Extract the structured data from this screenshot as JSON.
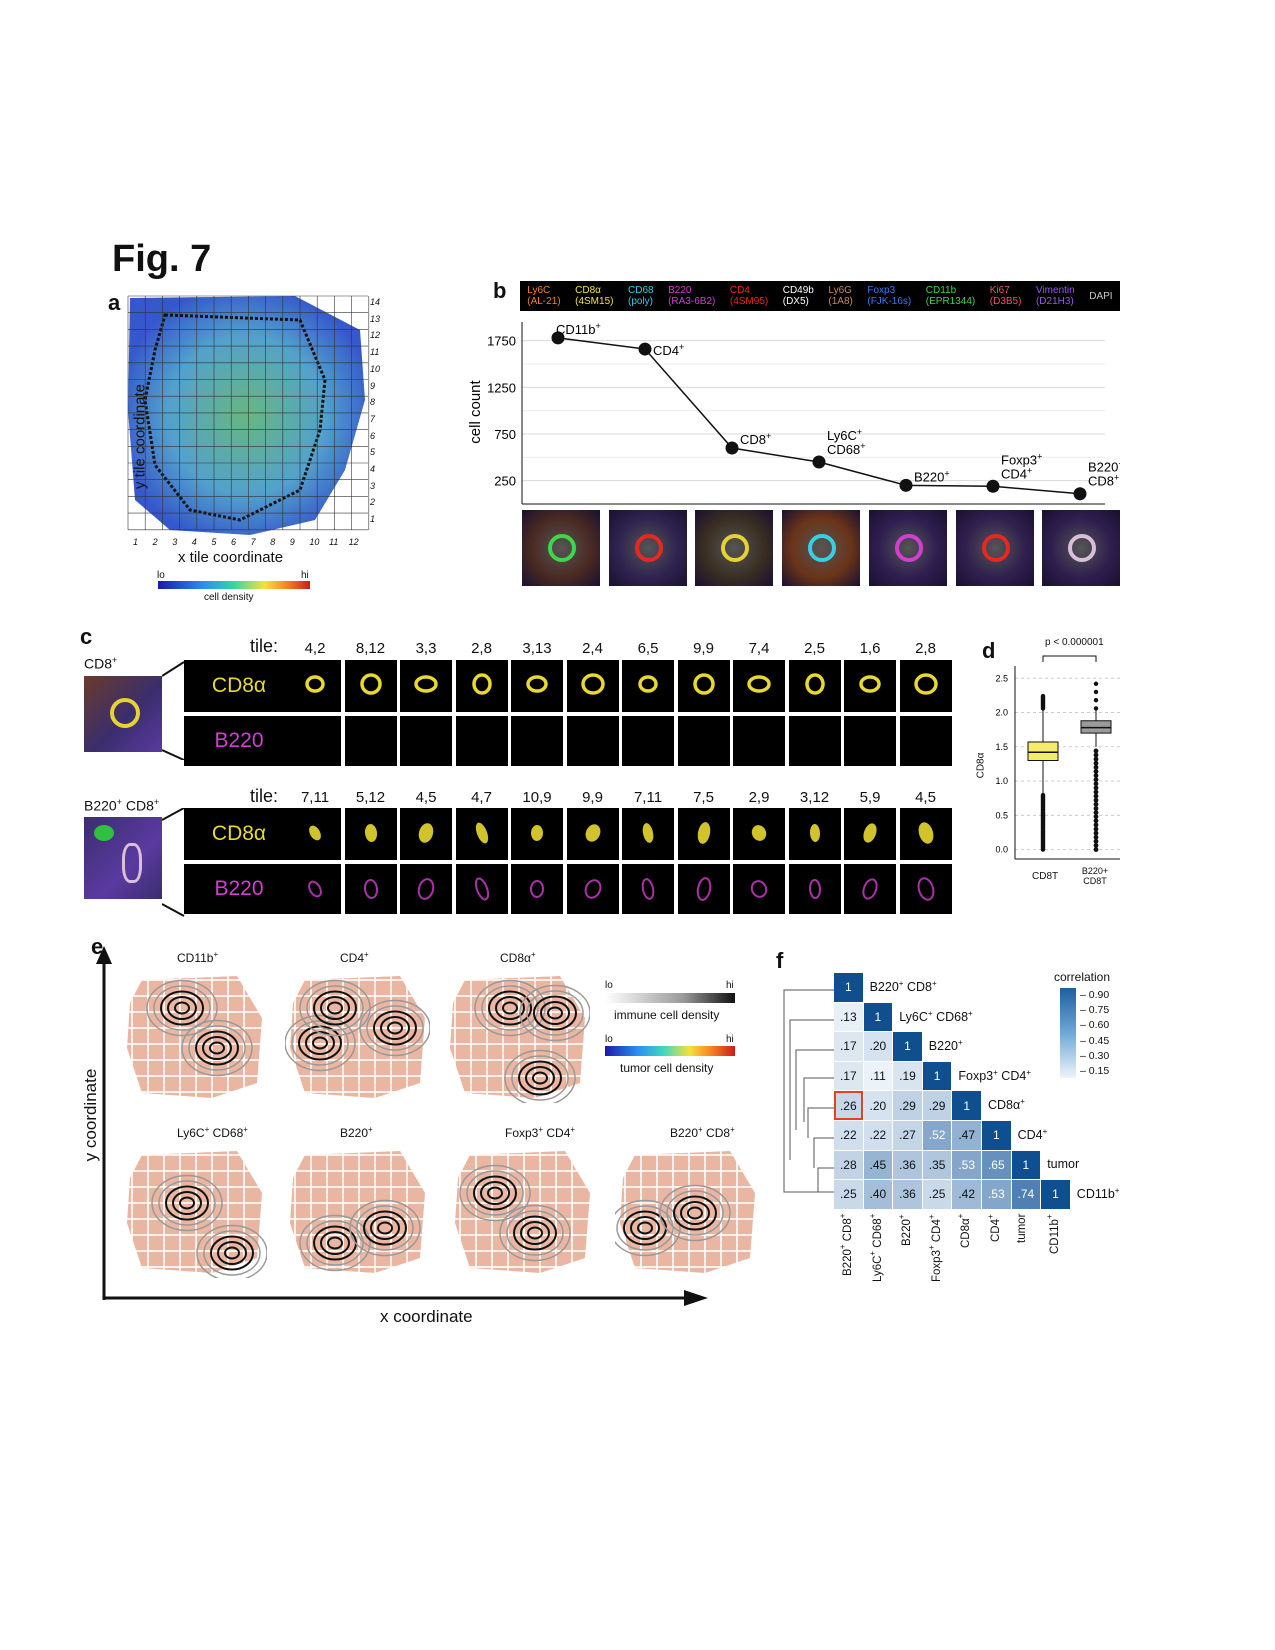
{
  "figure_title": "Fig. 7",
  "panels": {
    "a": {
      "letter": "a",
      "x_ticks": [
        "1",
        "2",
        "3",
        "4",
        "5",
        "6",
        "7",
        "8",
        "9",
        "10",
        "11",
        "12"
      ],
      "y_ticks": [
        "14",
        "13",
        "12",
        "11",
        "10",
        "9",
        "8",
        "7",
        "6",
        "5",
        "4",
        "3",
        "2",
        "1"
      ],
      "xlabel": "x tile coordinate",
      "ylabel": "y tile coordinate",
      "colorbar": {
        "lo": "lo",
        "hi": "hi",
        "label": "cell density"
      }
    },
    "b": {
      "letter": "b",
      "markers": [
        {
          "name": "Ly6C",
          "clone": "(AL-21)",
          "color": "#f58220"
        },
        {
          "name": "CD8α",
          "clone": "(4SM15)",
          "color": "#f5e13c"
        },
        {
          "name": "CD68",
          "clone": "(poly)",
          "color": "#35d0e6"
        },
        {
          "name": "B220",
          "clone": "(RA3-6B2)",
          "color": "#d23fd0"
        },
        {
          "name": "CD4",
          "clone": "(4SM95)",
          "color": "#e8281e"
        },
        {
          "name": "CD49b",
          "clone": "(DX5)",
          "color": "#ffffff"
        },
        {
          "name": "Ly6G",
          "clone": "(1A8)",
          "color": "#c98a5a"
        },
        {
          "name": "Foxp3",
          "clone": "(FJK-16s)",
          "color": "#3a7bf0"
        },
        {
          "name": "CD11b",
          "clone": "(EPR1344)",
          "color": "#3fd64a"
        },
        {
          "name": "Ki67",
          "clone": "(D3B5)",
          "color": "#f0506e"
        },
        {
          "name": "Vimentin",
          "clone": "(D21H3)",
          "color": "#9b59f0"
        },
        {
          "name": "DAPI",
          "clone": "",
          "color": "#cccccc"
        }
      ],
      "labels_line1": [
        "CD11b",
        "CD4",
        "CD8",
        "Ly6C",
        "B220",
        "Foxp3",
        "B220"
      ],
      "labels_line2": [
        "",
        "",
        "",
        "CD68",
        "",
        "CD4",
        "CD8"
      ],
      "sup": "+"
    },
    "c": {
      "letter": "c",
      "row1_label": "CD8",
      "row2_label_a": "B220",
      "row2_label_b": "CD8",
      "sup": "+",
      "tile_word": "tile:",
      "chan1": "CD8α",
      "chan2": "B220",
      "row1_tiles": [
        "4,2",
        "8,12",
        "3,3",
        "2,8",
        "3,13",
        "2,4",
        "6,5",
        "9,9",
        "7,4",
        "2,5",
        "1,6",
        "2,8"
      ],
      "row2_tiles": [
        "7,11",
        "5,12",
        "4,5",
        "4,7",
        "10,9",
        "9,9",
        "7,11",
        "7,5",
        "2,9",
        "3,12",
        "5,9",
        "4,5"
      ]
    },
    "d": {
      "letter": "d",
      "pvalue": "p < 0.000001",
      "ylabel": "CD8α",
      "cat1": "CD8T",
      "cat2a": "B220+",
      "cat2b": "CD8T"
    },
    "e": {
      "letter": "e",
      "xlabel": "x coordinate",
      "ylabel": "y coordinate",
      "maps": [
        {
          "a": "CD11b",
          "b": ""
        },
        {
          "a": "CD4",
          "b": ""
        },
        {
          "a": "CD8α",
          "b": ""
        },
        {
          "a": "Ly6C",
          "b": "CD68"
        },
        {
          "a": "B220",
          "b": ""
        },
        {
          "a": "Foxp3",
          "b": "CD4"
        },
        {
          "a": "B220",
          "b": "CD8"
        }
      ],
      "sup": "+",
      "immune_legend": {
        "lo": "lo",
        "hi": "hi",
        "label": "immune cell density"
      },
      "tumor_legend": {
        "lo": "lo",
        "hi": "hi",
        "label": "tumor cell density"
      }
    },
    "f": {
      "letter": "f",
      "legend_title": "correlation",
      "legend_ticks": [
        "0.90",
        "0.75",
        "0.60",
        "0.45",
        "0.30",
        "0.15"
      ],
      "row_labels": [
        "B220",
        "Ly6C",
        "B220",
        "Foxp3",
        "CD8α",
        "CD4",
        "tumor",
        "CD11b"
      ],
      "row_labels_b": [
        "CD8",
        "CD68",
        "",
        "CD4",
        "",
        "",
        "",
        ""
      ],
      "row_sup_a": [
        "+",
        "+",
        "+",
        "+",
        "+",
        "+",
        "",
        "+"
      ],
      "row_sup_b": [
        "+",
        "+",
        "",
        "+",
        "",
        "",
        "",
        ""
      ],
      "matrix": [
        [
          "1"
        ],
        [
          ".13",
          "1"
        ],
        [
          ".17",
          ".20",
          "1"
        ],
        [
          ".17",
          ".11",
          ".19",
          "1"
        ],
        [
          ".26",
          ".20",
          ".29",
          ".29",
          "1"
        ],
        [
          ".22",
          ".22",
          ".27",
          ".52",
          ".47",
          "1"
        ],
        [
          ".28",
          ".45",
          ".36",
          ".35",
          ".53",
          ".65",
          "1"
        ],
        [
          ".25",
          ".40",
          ".36",
          ".25",
          ".42",
          ".53",
          ".74",
          "1"
        ]
      ]
    }
  },
  "chart_data": [
    {
      "type": "line",
      "panel": "b",
      "categories": [
        "CD11b+",
        "CD4+",
        "CD8+",
        "Ly6C+ CD68+",
        "B220+",
        "Foxp3+ CD4+",
        "B220+ CD8+"
      ],
      "values": [
        1780,
        1660,
        600,
        450,
        200,
        190,
        110
      ],
      "ylabel": "cell count",
      "y_ticks": [
        "1750",
        "1250",
        "750",
        "250"
      ],
      "y_tick_values": [
        1750,
        1250,
        750,
        250
      ],
      "ylim": [
        0,
        1950
      ]
    },
    {
      "type": "box",
      "panel": "d",
      "categories": [
        "CD8T",
        "B220+ CD8T"
      ],
      "y_ticks": [
        "2.5",
        "2.0",
        "1.5",
        "1.0",
        "0.5",
        "0.0"
      ],
      "y_tick_values": [
        2.5,
        2.0,
        1.5,
        1.0,
        0.5,
        0.0
      ],
      "ylim": [
        -0.05,
        2.65
      ],
      "boxes": [
        {
          "name": "CD8T",
          "q1": 1.3,
          "median": 1.42,
          "q3": 1.57,
          "whisker_low": 0.8,
          "whisker_high": 2.05,
          "color": "#f5ec6e"
        },
        {
          "name": "B220+ CD8T",
          "q1": 1.7,
          "median": 1.78,
          "q3": 1.88,
          "whisker_low": 1.5,
          "whisker_high": 2.05,
          "color": "#9a9a9a"
        }
      ]
    }
  ]
}
